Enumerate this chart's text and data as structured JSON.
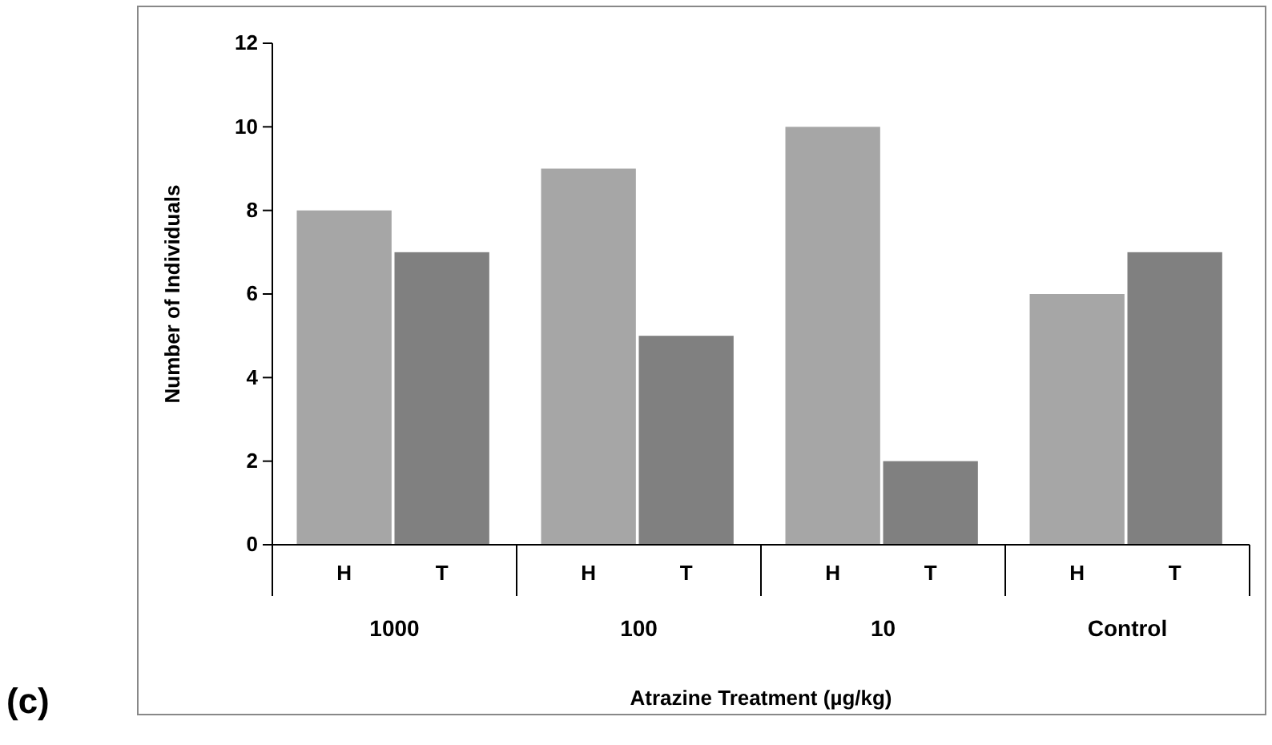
{
  "chart_data": {
    "type": "bar",
    "title": "(c)",
    "xlabel": "Atrazine Treatment (µg/kg)",
    "ylabel": "Number of Individuals",
    "categories": [
      "H",
      "T",
      "H",
      "T",
      "H",
      "T",
      "H",
      "T"
    ],
    "values": [
      8,
      7,
      9,
      5,
      10,
      2,
      6,
      7
    ],
    "colors": [
      "#a6a6a6",
      "#808080",
      "#a6a6a6",
      "#808080",
      "#a6a6a6",
      "#808080",
      "#a6a6a6",
      "#808080"
    ],
    "annotations": [
      "1000",
      "100",
      "10",
      "Control"
    ],
    "ylim": [
      0,
      12
    ],
    "yticks": [
      0,
      2,
      4,
      6,
      8,
      10,
      12
    ],
    "grid": false
  }
}
